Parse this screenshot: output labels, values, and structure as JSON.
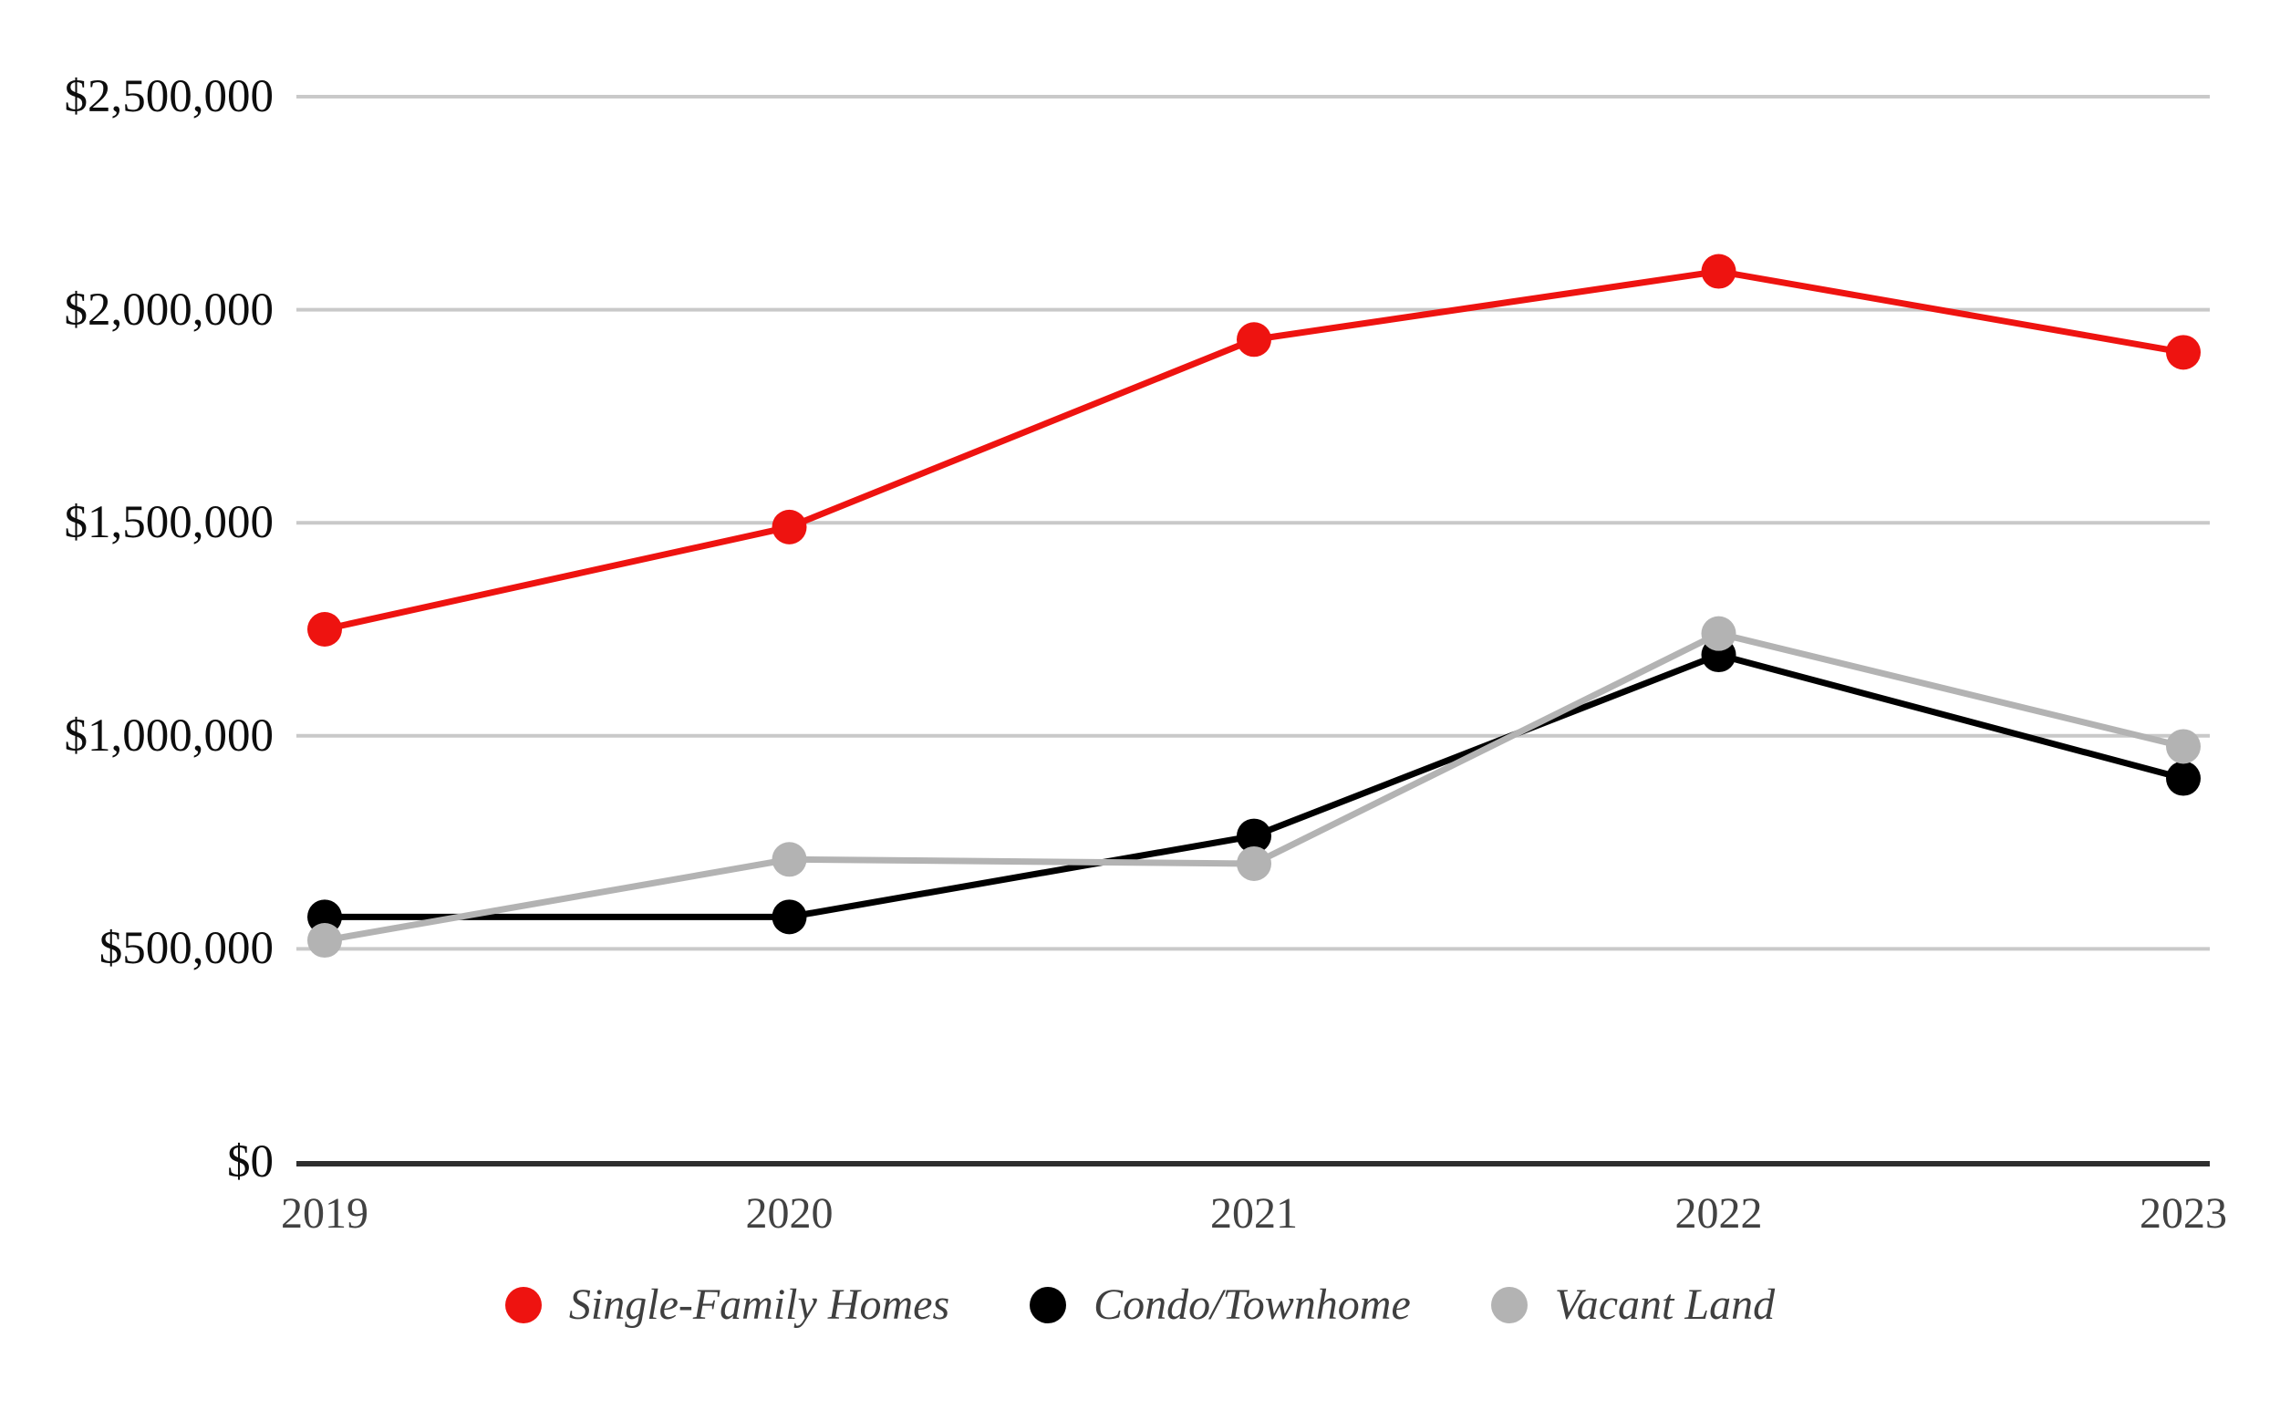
{
  "chart_data": {
    "type": "line",
    "title": "",
    "categories": [
      "2019",
      "2020",
      "2021",
      "2022",
      "2023"
    ],
    "series": [
      {
        "name": "Single-Family Homes",
        "color": "#ee1310",
        "values": [
          1250000,
          1490000,
          1930000,
          2090000,
          1900000
        ]
      },
      {
        "name": "Condo/Townhome",
        "color": "#000000",
        "values": [
          575000,
          575000,
          765000,
          1190000,
          900000
        ]
      },
      {
        "name": "Vacant Land",
        "color": "#b3b3b3",
        "values": [
          520000,
          710000,
          700000,
          1240000,
          975000
        ]
      }
    ],
    "y_axis": {
      "range": [
        0,
        2500000
      ],
      "ticks": [
        0,
        500000,
        1000000,
        1500000,
        2000000,
        2500000
      ],
      "tick_labels": [
        "$0",
        "$500,000",
        "$1,000,000",
        "$1,500,000",
        "$2,000,000",
        "$2,500,000"
      ]
    },
    "grid": true,
    "legend_position": "bottom",
    "marker_style": "filled-circle"
  },
  "colors": {
    "background": "#ffffff",
    "gridline": "#c9c9c9",
    "axis_line": "#2e2e2e",
    "y_label_text": "#0d0d0d",
    "x_label_text": "#424242",
    "legend_text": "#3f3f3f"
  }
}
